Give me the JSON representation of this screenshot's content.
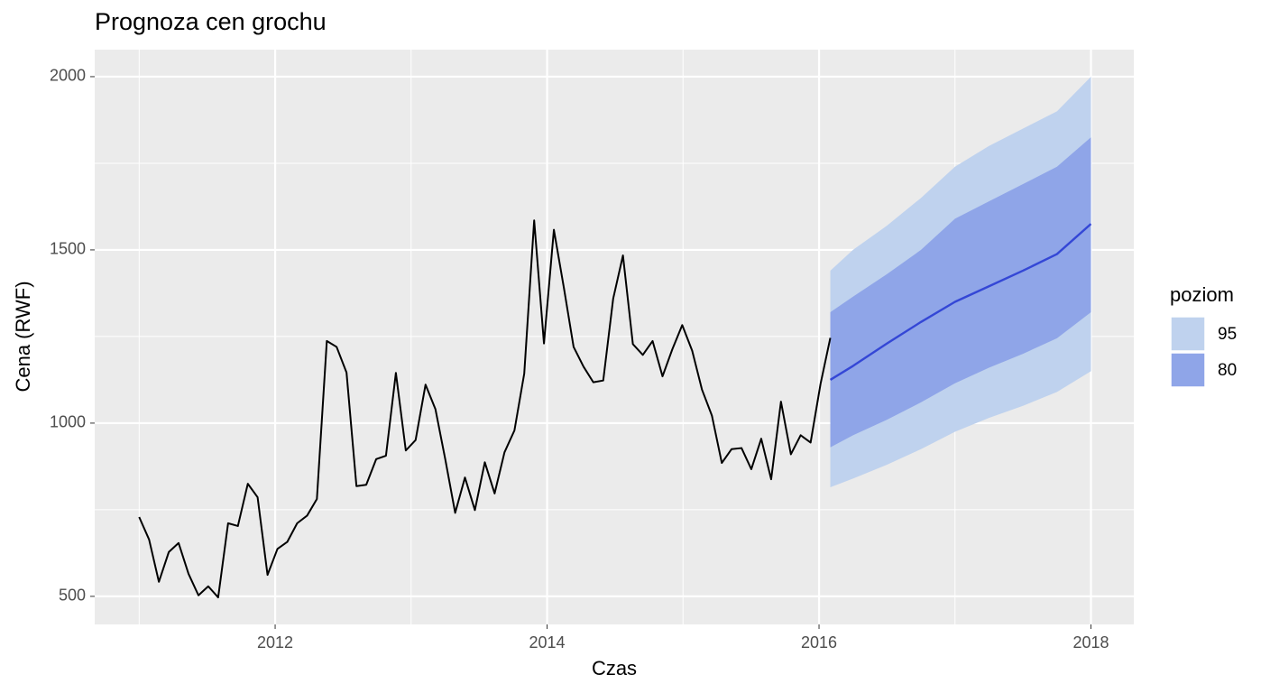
{
  "chart_data": {
    "type": "line",
    "title": "Prognoza cen grochu",
    "x_label": "Czas",
    "y_label": "Cena (RWF)",
    "xlim": [
      2010.673,
      2018.315
    ],
    "ylim": [
      419,
      2078
    ],
    "xticks": [
      2012,
      2014,
      2016,
      2018
    ],
    "yticks": [
      500,
      1000,
      1500,
      2000
    ],
    "xminor": [
      2011,
      2013,
      2015,
      2017
    ],
    "yminor": [
      750,
      1250,
      1750
    ],
    "grid": true,
    "series": [
      {
        "color": "#000000",
        "x": [
          2011.0,
          2011.073,
          2011.145,
          2011.218,
          2011.29,
          2011.363,
          2011.436,
          2011.508,
          2011.581,
          2011.654,
          2011.726,
          2011.799,
          2011.871,
          2011.944,
          2012.017,
          2012.089,
          2012.162,
          2012.235,
          2012.307,
          2012.38,
          2012.452,
          2012.525,
          2012.598,
          2012.67,
          2012.743,
          2012.815,
          2012.888,
          2012.961,
          2013.033,
          2013.106,
          2013.179,
          2013.251,
          2013.324,
          2013.396,
          2013.469,
          2013.542,
          2013.614,
          2013.687,
          2013.76,
          2013.832,
          2013.905,
          2013.977,
          2014.05,
          2014.123,
          2014.195,
          2014.268,
          2014.34,
          2014.413,
          2014.486,
          2014.558,
          2014.631,
          2014.704,
          2014.776,
          2014.849,
          2014.921,
          2014.994,
          2015.067,
          2015.139,
          2015.212,
          2015.285,
          2015.357,
          2015.43,
          2015.502,
          2015.575,
          2015.648,
          2015.72,
          2015.793,
          2015.865,
          2015.938,
          2016.011,
          2016.083
        ],
        "values": [
          729,
          664,
          542,
          628,
          654,
          565,
          503,
          529,
          497,
          711,
          703,
          825,
          786,
          562,
          637,
          657,
          711,
          733,
          781,
          1237,
          1220,
          1146,
          818,
          822,
          896,
          906,
          1145,
          921,
          951,
          1111,
          1040,
          896,
          741,
          843,
          749,
          887,
          797,
          916,
          979,
          1143,
          1585,
          1230,
          1558,
          1392,
          1220,
          1163,
          1118,
          1123,
          1359,
          1484,
          1228,
          1197,
          1237,
          1135,
          1213,
          1283,
          1209,
          1097,
          1022,
          885,
          925,
          928,
          867,
          955,
          838,
          1062,
          910,
          965,
          944,
          1113,
          1246
        ]
      }
    ],
    "forecast": {
      "color": "#3447d6",
      "x": [
        2016.083,
        2016.25,
        2016.5,
        2016.75,
        2017.0,
        2017.25,
        2017.5,
        2017.75,
        2018.0
      ],
      "values": [
        1125,
        1165,
        1230,
        1292,
        1350,
        1395,
        1440,
        1488,
        1575
      ],
      "legend_title": "poziom",
      "bands": [
        {
          "name": "80",
          "color": "#8fa5e8",
          "lower": [
            930,
            965,
            1010,
            1060,
            1115,
            1160,
            1200,
            1245,
            1320
          ],
          "upper": [
            1320,
            1365,
            1430,
            1500,
            1590,
            1640,
            1690,
            1740,
            1825
          ]
        },
        {
          "name": "95",
          "color": "#bfd2ee",
          "lower": [
            815,
            840,
            880,
            925,
            975,
            1015,
            1050,
            1090,
            1150
          ],
          "upper": [
            1440,
            1500,
            1570,
            1650,
            1740,
            1800,
            1850,
            1900,
            2000
          ]
        }
      ]
    }
  }
}
